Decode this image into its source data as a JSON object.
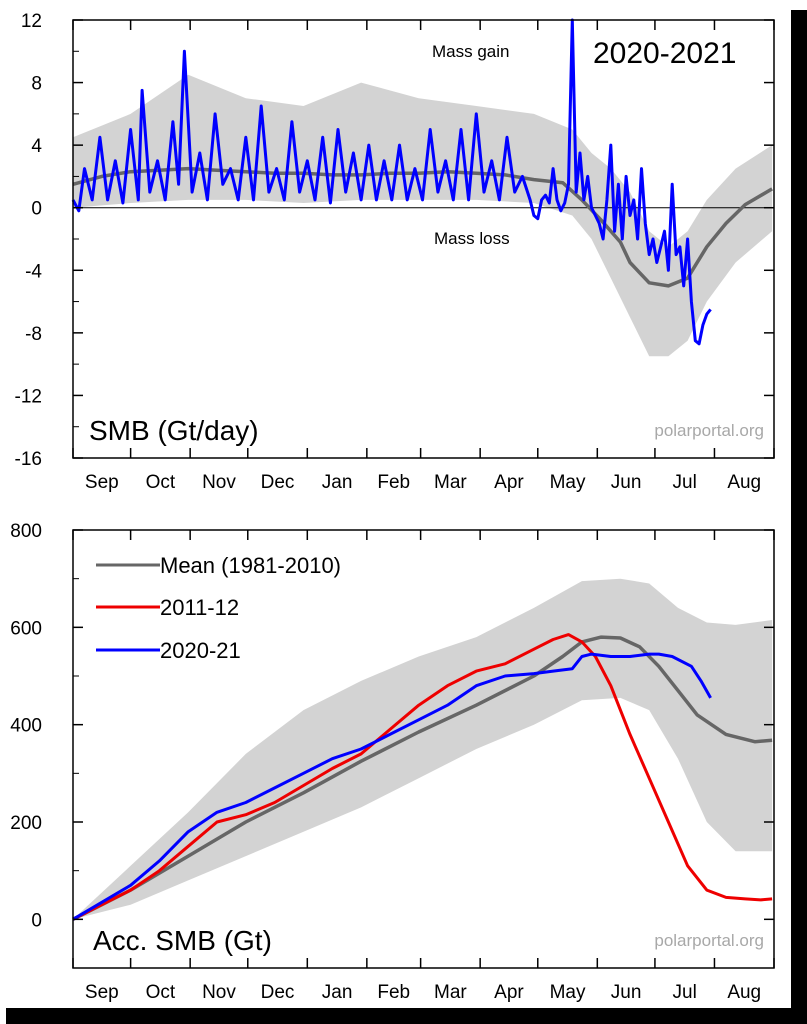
{
  "chart_data": [
    {
      "type": "line",
      "title": "2020-2021",
      "label": "SMB (Gt/day)",
      "watermark": "polarportal.org",
      "annotations": [
        "Mass gain",
        "Mass loss"
      ],
      "months": [
        "Sep",
        "Oct",
        "Nov",
        "Dec",
        "Jan",
        "Feb",
        "Mar",
        "Apr",
        "May",
        "Jun",
        "Jul",
        "Aug"
      ],
      "y_ticks": [
        "12",
        "8",
        "4",
        "0",
        "-4",
        "-8",
        "-12",
        "-16"
      ],
      "ylim": [
        -16,
        12
      ],
      "colors": {
        "mean": "#666666",
        "band": "#d3d3d3",
        "current": "#0000ff"
      },
      "series": [
        {
          "name": "Mean (1981-2010)",
          "x_days": [
            0,
            15,
            30,
            45,
            60,
            75,
            90,
            105,
            120,
            135,
            150,
            165,
            180,
            195,
            210,
            225,
            240,
            255,
            265,
            275,
            285,
            290,
            300,
            310,
            320,
            330,
            340,
            350,
            364
          ],
          "values": [
            1.5,
            2.0,
            2.3,
            2.4,
            2.5,
            2.4,
            2.3,
            2.2,
            2.2,
            2.1,
            2.1,
            2.2,
            2.2,
            2.3,
            2.2,
            2.1,
            1.8,
            1.6,
            0.5,
            -0.8,
            -2.2,
            -3.5,
            -4.8,
            -5.0,
            -4.5,
            -2.5,
            -1.0,
            0.2,
            1.2
          ]
        },
        {
          "name": "2020-21",
          "x_days": [
            0,
            3,
            6,
            10,
            14,
            18,
            22,
            26,
            30,
            34,
            36,
            40,
            44,
            48,
            52,
            55,
            58,
            62,
            66,
            70,
            74,
            78,
            82,
            86,
            90,
            94,
            98,
            102,
            106,
            110,
            114,
            118,
            122,
            126,
            130,
            134,
            138,
            142,
            146,
            150,
            154,
            158,
            162,
            166,
            170,
            174,
            178,
            182,
            186,
            190,
            194,
            198,
            202,
            206,
            210,
            214,
            218,
            222,
            226,
            230,
            234,
            238,
            240,
            242,
            244,
            246,
            248,
            250,
            252,
            254,
            256,
            258,
            260,
            262,
            264,
            266,
            268,
            270,
            272,
            274,
            276,
            278,
            280,
            282,
            284,
            286,
            288,
            290,
            292,
            294,
            296,
            298,
            300,
            302,
            304,
            306,
            308,
            310,
            312,
            314,
            316,
            318,
            320,
            322,
            324,
            326,
            328,
            330,
            332
          ],
          "values": [
            0.5,
            -0.2,
            2.5,
            0.5,
            4.5,
            0.5,
            3.0,
            0.3,
            5.0,
            0.5,
            7.5,
            1.0,
            3.0,
            0.5,
            5.5,
            1.5,
            10.0,
            1.0,
            3.5,
            0.5,
            6.0,
            1.5,
            2.5,
            0.5,
            4.5,
            0.5,
            6.5,
            1.0,
            2.5,
            0.5,
            5.5,
            1.0,
            3.0,
            0.5,
            4.5,
            0.3,
            5.0,
            1.0,
            3.5,
            0.5,
            4.0,
            0.5,
            3.0,
            0.5,
            4.0,
            0.5,
            2.5,
            0.5,
            5.0,
            1.0,
            3.0,
            0.5,
            5.0,
            0.5,
            6.0,
            1.0,
            3.0,
            0.5,
            4.5,
            1.0,
            2.0,
            0.5,
            -0.5,
            -0.7,
            0.5,
            0.8,
            0.3,
            2.5,
            0.5,
            -0.2,
            0.3,
            1.5,
            12.0,
            1.0,
            3.5,
            0.5,
            2.0,
            0.0,
            -0.5,
            -1.0,
            -2.0,
            0.5,
            4.0,
            -1.5,
            1.5,
            -2.0,
            2.0,
            -0.5,
            0.5,
            -2.0,
            2.5,
            -1.0,
            -3.0,
            -2.0,
            -3.5,
            -2.5,
            -1.5,
            -4.0,
            1.5,
            -3.0,
            -2.5,
            -5.0,
            -2.0,
            -6.0,
            -8.5,
            -8.7,
            -7.5,
            -6.8,
            -6.5
          ]
        }
      ],
      "band": {
        "x_days": [
          0,
          30,
          60,
          90,
          120,
          150,
          180,
          210,
          240,
          260,
          270,
          280,
          290,
          300,
          310,
          320,
          330,
          345,
          364
        ],
        "upper": [
          4.5,
          6.0,
          8.5,
          7.0,
          6.5,
          8.0,
          7.0,
          6.5,
          6.0,
          5.0,
          3.5,
          2.5,
          1.0,
          -1.5,
          -2.5,
          -1.5,
          0.5,
          2.5,
          4.0
        ],
        "lower": [
          0.0,
          0.3,
          0.5,
          0.5,
          0.3,
          0.5,
          0.5,
          0.5,
          0.3,
          -0.5,
          -2.0,
          -4.5,
          -7.0,
          -9.5,
          -9.5,
          -8.5,
          -6.0,
          -3.5,
          -1.5
        ]
      }
    },
    {
      "type": "line",
      "label": "Acc. SMB (Gt)",
      "watermark": "polarportal.org",
      "months": [
        "Sep",
        "Oct",
        "Nov",
        "Dec",
        "Jan",
        "Feb",
        "Mar",
        "Apr",
        "May",
        "Jun",
        "Jul",
        "Aug"
      ],
      "y_ticks": [
        "800",
        "600",
        "400",
        "200",
        "0"
      ],
      "ylim": [
        -100,
        800
      ],
      "colors": {
        "mean": "#666666",
        "band": "#d3d3d3",
        "y2011": "#ee0000",
        "current": "#0000ff"
      },
      "series": [
        {
          "name": "Mean (1981-2010)",
          "x_days": [
            0,
            30,
            60,
            90,
            120,
            150,
            180,
            210,
            240,
            255,
            265,
            275,
            285,
            295,
            305,
            315,
            325,
            340,
            355,
            364
          ],
          "values": [
            0,
            60,
            130,
            200,
            260,
            325,
            385,
            440,
            500,
            540,
            570,
            580,
            578,
            560,
            520,
            470,
            420,
            380,
            365,
            368
          ]
        },
        {
          "name": "2011-12",
          "x_days": [
            0,
            15,
            30,
            45,
            60,
            75,
            90,
            105,
            120,
            135,
            150,
            165,
            180,
            195,
            210,
            225,
            240,
            250,
            258,
            265,
            272,
            280,
            290,
            300,
            310,
            320,
            330,
            340,
            350,
            358,
            364
          ],
          "values": [
            0,
            30,
            60,
            100,
            150,
            200,
            215,
            240,
            275,
            310,
            340,
            390,
            440,
            480,
            510,
            525,
            555,
            575,
            585,
            570,
            540,
            480,
            380,
            290,
            200,
            110,
            60,
            45,
            42,
            40,
            42
          ]
        },
        {
          "name": "2020-21",
          "x_days": [
            0,
            15,
            30,
            45,
            60,
            75,
            90,
            105,
            120,
            135,
            150,
            165,
            180,
            195,
            210,
            225,
            240,
            250,
            260,
            265,
            270,
            280,
            290,
            300,
            305,
            312,
            322,
            327,
            332
          ],
          "values": [
            0,
            35,
            70,
            120,
            180,
            220,
            240,
            270,
            300,
            330,
            350,
            380,
            410,
            440,
            480,
            500,
            505,
            510,
            515,
            540,
            545,
            540,
            540,
            545,
            545,
            540,
            520,
            490,
            455
          ]
        }
      ],
      "band": {
        "x_days": [
          0,
          30,
          60,
          90,
          120,
          150,
          180,
          210,
          240,
          265,
          285,
          300,
          315,
          330,
          345,
          364
        ],
        "upper": [
          0,
          110,
          220,
          340,
          430,
          490,
          540,
          580,
          640,
          695,
          700,
          690,
          640,
          610,
          605,
          615
        ],
        "lower": [
          0,
          30,
          80,
          130,
          180,
          230,
          290,
          350,
          400,
          450,
          455,
          430,
          330,
          200,
          140,
          140
        ]
      }
    }
  ]
}
